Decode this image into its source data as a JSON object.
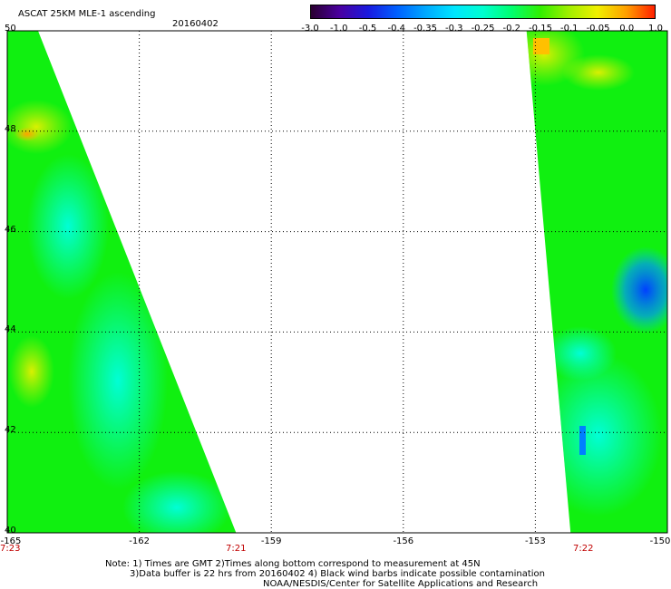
{
  "title": "ASCAT 25KM MLE-1 ascending",
  "date": "20160402",
  "colorbar": {
    "ticks": [
      "-3.0",
      "-1.0",
      "-0.5",
      "-0.4",
      "-0.35",
      "-0.3",
      "-0.25",
      "-0.2",
      "-0.15",
      "-0.1",
      "-0.05",
      "0.0",
      "1.0"
    ],
    "colors": [
      "#2a0030",
      "#4a00a0",
      "#1a1ae0",
      "#0060ff",
      "#00a8ff",
      "#00e6ff",
      "#00ffd0",
      "#00ff70",
      "#30f000",
      "#a0f000",
      "#f0f000",
      "#ffa000",
      "#ff2000"
    ]
  },
  "map": {
    "lon_range": [
      -165,
      -150
    ],
    "lat_range": [
      40,
      50
    ],
    "x_ticks": [
      "-165",
      "-162",
      "-159",
      "-156",
      "-153",
      "-150"
    ],
    "y_ticks": [
      "50",
      "48",
      "46",
      "44",
      "42",
      "40"
    ],
    "times": [
      "7:23",
      "7:21",
      "7:22"
    ],
    "swaths": [
      {
        "name": "west-swath",
        "lon_min": -165,
        "lat": [
          40,
          50
        ],
        "east_edge_lon": [
          -159.8,
          -164.3
        ]
      },
      {
        "name": "east-swath",
        "lon_max": -150,
        "lat": [
          40,
          50
        ],
        "west_edge_lon": [
          -152.2,
          -153.2
        ]
      }
    ]
  },
  "notes": {
    "line1": "Note: 1) Times are GMT 2)Times along bottom correspond to measurement at 45N",
    "line2": "3)Data buffer is 22 hrs from 20160402 4) Black wind barbs indicate possible contamination",
    "line3": "NOAA/NESDIS/Center for Satellite Applications and Research"
  }
}
